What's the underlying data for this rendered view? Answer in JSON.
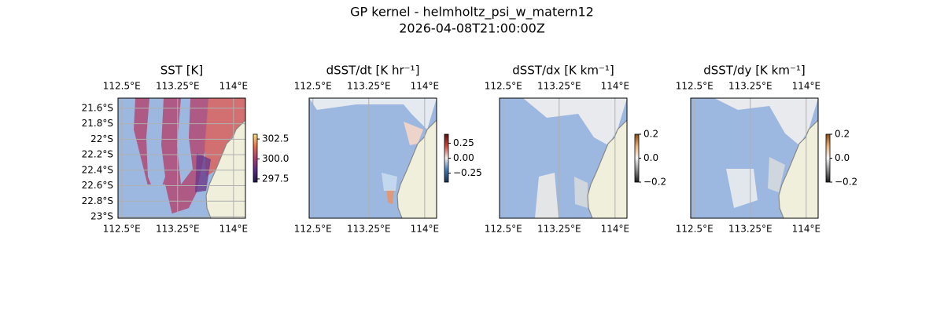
{
  "title": "GP kernel - helmholtz_psi_w_matern12",
  "subtitle": "2026-04-08T21:00:00Z",
  "chart_data": [
    {
      "type": "map",
      "title": "SST [K]",
      "xlim": [
        112.45,
        114.16
      ],
      "ylim": [
        -23.02,
        -21.47
      ],
      "xticks": [
        {
          "value": 112.5,
          "label": "112.5°E"
        },
        {
          "value": 113.25,
          "label": "113.25°E"
        },
        {
          "value": 114,
          "label": "114°E"
        }
      ],
      "yticks": [
        {
          "value": -21.6,
          "label": "21.6°S"
        },
        {
          "value": -21.8,
          "label": "21.8°S"
        },
        {
          "value": -22,
          "label": "22°S"
        },
        {
          "value": -22.2,
          "label": "22.2°S"
        },
        {
          "value": -22.4,
          "label": "22.4°S"
        },
        {
          "value": -22.6,
          "label": "22.6°S"
        },
        {
          "value": -22.8,
          "label": "22.8°S"
        },
        {
          "value": -23,
          "label": "23°S"
        }
      ],
      "grid": true,
      "colorbar": {
        "lim": [
          297.1,
          303.1
        ],
        "colors": [
          "#1c1640",
          "#5c2a8a",
          "#b03a6e",
          "#e8704a",
          "#f6e07a"
        ],
        "ticks": [
          {
            "value": 297.5,
            "label": "297.5"
          },
          {
            "value": 300,
            "label": "300.0"
          },
          {
            "value": 302.5,
            "label": "302.5"
          }
        ]
      }
    },
    {
      "type": "map",
      "title": "dSST/dt [K hr⁻¹]",
      "xlim": [
        112.45,
        114.16
      ],
      "ylim": [
        -23.02,
        -21.47
      ],
      "xticks": [
        {
          "value": 112.5,
          "label": "112.5°E"
        },
        {
          "value": 113.25,
          "label": "113.25°E"
        },
        {
          "value": 114,
          "label": "114°E"
        }
      ],
      "grid": true,
      "colorbar": {
        "lim": [
          -0.4,
          0.4
        ],
        "colors": [
          "#17304f",
          "#3f79b8",
          "#f2f2f2",
          "#d0483a",
          "#5a0e12"
        ],
        "ticks": [
          {
            "value": -0.25,
            "label": "−0.25"
          },
          {
            "value": 0,
            "label": "0.00"
          },
          {
            "value": 0.25,
            "label": "0.25"
          }
        ]
      }
    },
    {
      "type": "map",
      "title": "dSST/dx [K km⁻¹]",
      "xlim": [
        112.45,
        114.16
      ],
      "ylim": [
        -23.02,
        -21.47
      ],
      "xticks": [
        {
          "value": 112.5,
          "label": "112.5°E"
        },
        {
          "value": 113.25,
          "label": "113.25°E"
        },
        {
          "value": 114,
          "label": "114°E"
        }
      ],
      "grid": true,
      "colorbar": {
        "lim": [
          -0.2,
          0.2
        ],
        "colors": [
          "#1a1a1a",
          "#8a8a8a",
          "#f5f5f5",
          "#e8b27a",
          "#8a4a10"
        ],
        "ticks": [
          {
            "value": -0.2,
            "label": "−0.2"
          },
          {
            "value": 0,
            "label": "0.0"
          },
          0.2
        ]
      }
    },
    {
      "type": "map",
      "title": "dSST/dy [K km⁻¹]",
      "xlim": [
        112.45,
        114.16
      ],
      "ylim": [
        -23.02,
        -21.47
      ],
      "xticks": [
        {
          "value": 112.5,
          "label": "112.5°E"
        },
        {
          "value": 113.25,
          "label": "113.25°E"
        },
        {
          "value": 114,
          "label": "114°E"
        }
      ],
      "grid": true,
      "colorbar": {
        "lim": [
          -0.2,
          0.2
        ],
        "colors": [
          "#1a1a1a",
          "#8a8a8a",
          "#f5f5f5",
          "#e8b27a",
          "#8a4a10"
        ],
        "ticks": [
          {
            "value": -0.2,
            "label": "−0.2"
          },
          {
            "value": 0,
            "label": "0.0"
          },
          0.2
        ]
      }
    }
  ]
}
